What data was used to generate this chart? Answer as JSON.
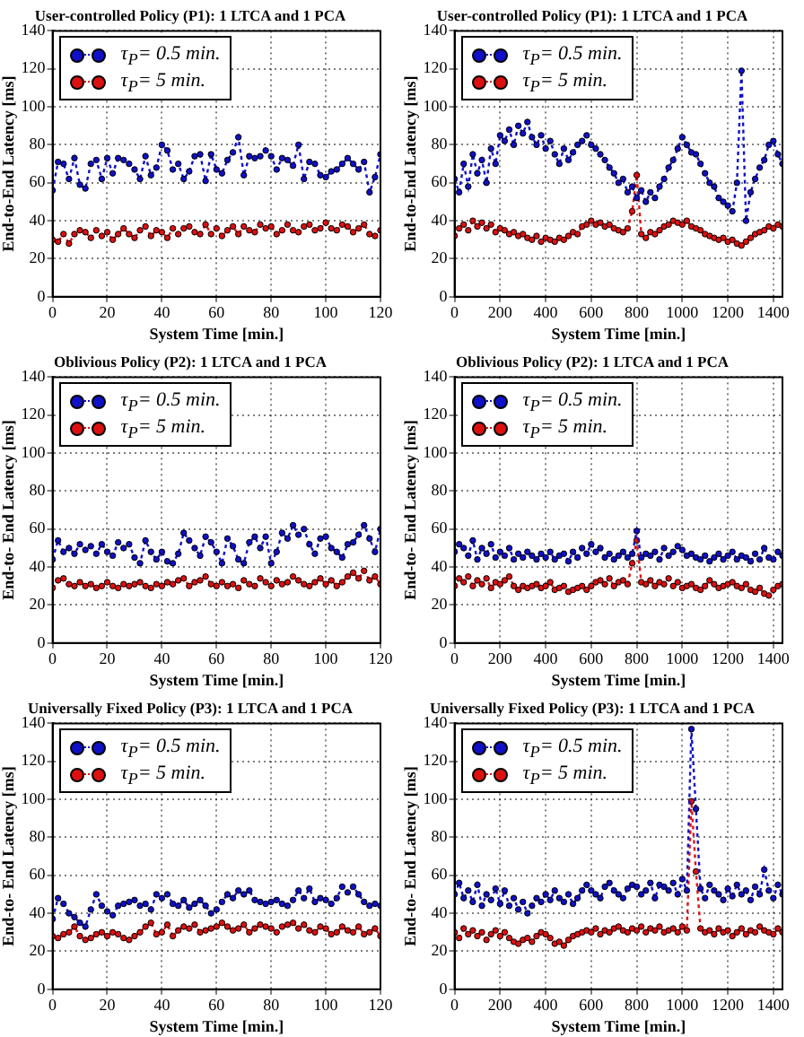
{
  "chart_data": [
    {
      "type": "line",
      "title": "User-controlled Policy (P1): 1 LTCA and 1 PCA",
      "xlabel": "System Time [min.]",
      "ylabel": "End-to-End Latency [ms]",
      "xlim": [
        0,
        120
      ],
      "xticks": [
        0,
        20,
        40,
        60,
        80,
        100,
        120
      ],
      "ylim": [
        0,
        140
      ],
      "yticks": [
        0,
        20,
        40,
        60,
        80,
        100,
        120,
        140
      ],
      "grid": true,
      "legend": "top left",
      "marker": "circle",
      "line_style": "dotted",
      "x": [
        0,
        2,
        4,
        6,
        8,
        10,
        12,
        14,
        16,
        18,
        20,
        22,
        24,
        26,
        28,
        30,
        32,
        34,
        36,
        38,
        40,
        42,
        44,
        46,
        48,
        50,
        52,
        54,
        56,
        58,
        60,
        62,
        64,
        66,
        68,
        70,
        72,
        74,
        76,
        78,
        80,
        82,
        84,
        86,
        88,
        90,
        92,
        94,
        96,
        98,
        100,
        102,
        104,
        106,
        108,
        110,
        112,
        114,
        116,
        118,
        120
      ],
      "series": [
        {
          "name": "τ$_{P}$= 0.5 min.",
          "color": "#1010c8",
          "values": [
            56,
            71,
            70,
            62,
            73,
            59,
            57,
            70,
            72,
            62,
            73,
            65,
            73,
            72,
            70,
            67,
            62,
            74,
            64,
            68,
            80,
            77,
            67,
            70,
            62,
            66,
            74,
            75,
            61,
            75,
            67,
            65,
            72,
            76,
            84,
            64,
            74,
            73,
            74,
            77,
            74,
            67,
            73,
            72,
            69,
            80,
            62,
            71,
            70,
            64,
            63,
            66,
            67,
            70,
            73,
            70,
            67,
            71,
            55,
            63,
            75
          ]
        },
        {
          "name": "τ$_{P}$= 5 min.",
          "color": "#dd1010",
          "values": [
            30,
            29,
            33,
            28,
            33,
            35,
            34,
            31,
            35,
            32,
            34,
            30,
            33,
            36,
            33,
            31,
            35,
            37,
            32,
            35,
            34,
            31,
            36,
            33,
            36,
            37,
            34,
            33,
            38,
            33,
            36,
            32,
            35,
            37,
            33,
            37,
            35,
            34,
            38,
            36,
            37,
            33,
            35,
            38,
            35,
            34,
            37,
            38,
            35,
            36,
            39,
            36,
            35,
            38,
            37,
            34,
            36,
            38,
            33,
            32,
            35
          ]
        }
      ]
    },
    {
      "type": "line",
      "title": "User-controlled Policy (P1): 1 LTCA and 1 PCA",
      "xlabel": "System Time [min.]",
      "ylabel": "End-to-End Latency [ms]",
      "xlim": [
        0,
        1440
      ],
      "xticks": [
        0,
        200,
        400,
        600,
        800,
        1000,
        1200,
        1400
      ],
      "ylim": [
        0,
        140
      ],
      "yticks": [
        0,
        20,
        40,
        60,
        80,
        100,
        120,
        140
      ],
      "grid": true,
      "legend": "top left",
      "marker": "circle",
      "line_style": "dotted",
      "x": [
        0,
        20,
        40,
        60,
        80,
        100,
        120,
        140,
        160,
        180,
        200,
        220,
        240,
        260,
        280,
        300,
        320,
        340,
        360,
        380,
        400,
        420,
        440,
        460,
        480,
        500,
        520,
        540,
        560,
        580,
        600,
        620,
        640,
        660,
        680,
        700,
        720,
        740,
        760,
        780,
        800,
        820,
        840,
        860,
        880,
        900,
        920,
        940,
        960,
        980,
        1000,
        1020,
        1040,
        1060,
        1080,
        1100,
        1120,
        1140,
        1160,
        1180,
        1200,
        1220,
        1240,
        1260,
        1280,
        1300,
        1320,
        1340,
        1360,
        1380,
        1400,
        1420,
        1440
      ],
      "series": [
        {
          "name": "τ$_{P}$= 0.5 min.",
          "color": "#1010c8",
          "values": [
            62,
            55,
            70,
            58,
            75,
            65,
            72,
            60,
            78,
            70,
            85,
            82,
            88,
            80,
            90,
            86,
            92,
            84,
            80,
            85,
            78,
            82,
            75,
            70,
            78,
            72,
            76,
            80,
            82,
            85,
            80,
            78,
            75,
            72,
            68,
            65,
            60,
            62,
            55,
            58,
            52,
            56,
            50,
            55,
            52,
            58,
            62,
            68,
            72,
            78,
            84,
            80,
            76,
            75,
            70,
            65,
            60,
            58,
            52,
            50,
            48,
            45,
            60,
            119,
            40,
            55,
            62,
            68,
            72,
            80,
            82,
            75,
            70
          ]
        },
        {
          "name": "τ$_{P}$= 5 min.",
          "color": "#dd1010",
          "values": [
            32,
            36,
            38,
            35,
            40,
            37,
            39,
            36,
            38,
            34,
            36,
            35,
            33,
            34,
            32,
            33,
            31,
            30,
            32,
            29,
            31,
            30,
            29,
            31,
            30,
            32,
            34,
            33,
            37,
            38,
            40,
            38,
            39,
            37,
            38,
            36,
            35,
            34,
            36,
            45,
            64,
            33,
            31,
            34,
            33,
            35,
            37,
            38,
            40,
            39,
            38,
            40,
            37,
            36,
            35,
            33,
            32,
            31,
            30,
            31,
            29,
            30,
            28,
            27,
            29,
            31,
            33,
            34,
            35,
            37,
            36,
            38,
            37
          ]
        }
      ]
    },
    {
      "type": "line",
      "title": "Oblivious Policy (P2): 1 LTCA and 1 PCA",
      "xlabel": "System Time [min.]",
      "ylabel": "End-to- End Latency [ms]",
      "xlim": [
        0,
        120
      ],
      "xticks": [
        0,
        20,
        40,
        60,
        80,
        100,
        120
      ],
      "ylim": [
        0,
        140
      ],
      "yticks": [
        0,
        20,
        40,
        60,
        80,
        100,
        120,
        140
      ],
      "grid": true,
      "legend": "top left",
      "marker": "circle",
      "line_style": "dotted",
      "x": [
        0,
        2,
        4,
        6,
        8,
        10,
        12,
        14,
        16,
        18,
        20,
        22,
        24,
        26,
        28,
        30,
        32,
        34,
        36,
        38,
        40,
        42,
        44,
        46,
        48,
        50,
        52,
        54,
        56,
        58,
        60,
        62,
        64,
        66,
        68,
        70,
        72,
        74,
        76,
        78,
        80,
        82,
        84,
        86,
        88,
        90,
        92,
        94,
        96,
        98,
        100,
        102,
        104,
        106,
        108,
        110,
        112,
        114,
        116,
        118,
        120
      ],
      "series": [
        {
          "name": "τ$_{P}$= 0.5 min.",
          "color": "#1010c8",
          "values": [
            44,
            54,
            48,
            50,
            47,
            52,
            49,
            51,
            47,
            52,
            48,
            46,
            53,
            50,
            52,
            45,
            42,
            54,
            48,
            44,
            48,
            43,
            42,
            47,
            58,
            54,
            50,
            46,
            56,
            53,
            48,
            42,
            55,
            51,
            44,
            42,
            53,
            56,
            50,
            56,
            42,
            48,
            58,
            55,
            62,
            57,
            60,
            52,
            47,
            55,
            56,
            50,
            48,
            45,
            52,
            53,
            57,
            62,
            55,
            48,
            60
          ]
        },
        {
          "name": "τ$_{P}$= 5 min.",
          "color": "#dd1010",
          "values": [
            29,
            33,
            34,
            31,
            30,
            32,
            30,
            31,
            29,
            30,
            32,
            30,
            29,
            31,
            30,
            31,
            32,
            30,
            29,
            31,
            30,
            32,
            31,
            33,
            34,
            30,
            32,
            33,
            35,
            31,
            30,
            32,
            30,
            31,
            29,
            33,
            31,
            30,
            34,
            32,
            30,
            33,
            31,
            32,
            35,
            33,
            31,
            30,
            32,
            34,
            31,
            33,
            30,
            32,
            35,
            37,
            34,
            38,
            33,
            35,
            31
          ]
        }
      ]
    },
    {
      "type": "line",
      "title": "Oblivious Policy (P2): 1 LTCA and 1 PCA",
      "xlabel": "System Time [min.]",
      "ylabel": "End-to- End Latency [ms]",
      "xlim": [
        0,
        1440
      ],
      "xticks": [
        0,
        200,
        400,
        600,
        800,
        1000,
        1200,
        1400
      ],
      "ylim": [
        0,
        140
      ],
      "yticks": [
        0,
        20,
        40,
        60,
        80,
        100,
        120,
        140
      ],
      "grid": true,
      "legend": "top left",
      "marker": "circle",
      "line_style": "dotted",
      "x": [
        0,
        20,
        40,
        60,
        80,
        100,
        120,
        140,
        160,
        180,
        200,
        220,
        240,
        260,
        280,
        300,
        320,
        340,
        360,
        380,
        400,
        420,
        440,
        460,
        480,
        500,
        520,
        540,
        560,
        580,
        600,
        620,
        640,
        660,
        680,
        700,
        720,
        740,
        760,
        780,
        800,
        820,
        840,
        860,
        880,
        900,
        920,
        940,
        960,
        980,
        1000,
        1020,
        1040,
        1060,
        1080,
        1100,
        1120,
        1140,
        1160,
        1180,
        1200,
        1220,
        1240,
        1260,
        1280,
        1300,
        1320,
        1340,
        1360,
        1380,
        1400,
        1420,
        1440
      ],
      "series": [
        {
          "name": "τ$_{P}$= 0.5 min.",
          "color": "#1010c8",
          "values": [
            48,
            52,
            50,
            46,
            54,
            44,
            50,
            47,
            52,
            45,
            48,
            46,
            50,
            44,
            47,
            45,
            48,
            46,
            44,
            47,
            45,
            48,
            44,
            46,
            47,
            43,
            48,
            45,
            50,
            47,
            52,
            48,
            50,
            45,
            47,
            44,
            46,
            48,
            45,
            47,
            59,
            45,
            47,
            46,
            48,
            44,
            50,
            46,
            48,
            51,
            49,
            46,
            47,
            45,
            44,
            46,
            43,
            45,
            47,
            44,
            46,
            48,
            44,
            46,
            45,
            43,
            47,
            44,
            50,
            45,
            44,
            48,
            46
          ]
        },
        {
          "name": "τ$_{P}$= 5 min.",
          "color": "#dd1010",
          "values": [
            30,
            34,
            32,
            35,
            30,
            33,
            31,
            34,
            29,
            32,
            31,
            33,
            35,
            30,
            28,
            30,
            29,
            30,
            31,
            29,
            30,
            32,
            28,
            29,
            30,
            27,
            28,
            29,
            30,
            28,
            30,
            32,
            33,
            31,
            34,
            30,
            32,
            33,
            31,
            42,
            54,
            32,
            31,
            33,
            30,
            32,
            31,
            34,
            30,
            32,
            29,
            30,
            31,
            29,
            28,
            30,
            33,
            31,
            29,
            30,
            31,
            32,
            30,
            29,
            31,
            28,
            27,
            29,
            26,
            25,
            28,
            30,
            31
          ]
        }
      ]
    },
    {
      "type": "line",
      "title": "Universally Fixed Policy (P3): 1 LTCA and 1 PCA",
      "xlabel": "System Time [min.]",
      "ylabel": "End-to- End Latency [ms]",
      "xlim": [
        0,
        120
      ],
      "xticks": [
        0,
        20,
        40,
        60,
        80,
        100,
        120
      ],
      "ylim": [
        0,
        140
      ],
      "yticks": [
        0,
        20,
        40,
        60,
        80,
        100,
        120,
        140
      ],
      "grid": true,
      "legend": "top left",
      "marker": "circle",
      "line_style": "dotted",
      "x": [
        0,
        2,
        4,
        6,
        8,
        10,
        12,
        14,
        16,
        18,
        20,
        22,
        24,
        26,
        28,
        30,
        32,
        34,
        36,
        38,
        40,
        42,
        44,
        46,
        48,
        50,
        52,
        54,
        56,
        58,
        60,
        62,
        64,
        66,
        68,
        70,
        72,
        74,
        76,
        78,
        80,
        82,
        84,
        86,
        88,
        90,
        92,
        94,
        96,
        98,
        100,
        102,
        104,
        106,
        108,
        110,
        112,
        114,
        116,
        118,
        120
      ],
      "series": [
        {
          "name": "τ$_{P}$= 0.5 min.",
          "color": "#1010c8",
          "values": [
            37,
            48,
            45,
            40,
            38,
            35,
            33,
            42,
            50,
            44,
            41,
            39,
            44,
            45,
            46,
            47,
            44,
            45,
            42,
            50,
            48,
            50,
            45,
            44,
            47,
            43,
            45,
            47,
            44,
            40,
            42,
            46,
            50,
            48,
            52,
            50,
            52,
            47,
            46,
            45,
            46,
            47,
            45,
            44,
            47,
            52,
            48,
            53,
            46,
            48,
            47,
            45,
            48,
            54,
            51,
            54,
            50,
            46,
            44,
            45,
            44
          ]
        },
        {
          "name": "τ$_{P}$= 5 min.",
          "color": "#dd1010",
          "values": [
            28,
            27,
            29,
            30,
            33,
            28,
            26,
            27,
            29,
            30,
            28,
            30,
            29,
            27,
            26,
            28,
            30,
            33,
            35,
            29,
            30,
            34,
            28,
            31,
            33,
            32,
            34,
            30,
            31,
            32,
            33,
            35,
            33,
            31,
            32,
            34,
            30,
            32,
            34,
            33,
            32,
            30,
            33,
            34,
            35,
            32,
            34,
            31,
            30,
            33,
            32,
            29,
            30,
            33,
            31,
            30,
            33,
            29,
            30,
            32,
            28
          ]
        }
      ]
    },
    {
      "type": "line",
      "title": "Universally Fixed Policy (P3): 1 LTCA and 1 PCA",
      "xlabel": "System Time [min.]",
      "ylabel": "End-to- End Latency [ms]",
      "xlim": [
        0,
        1440
      ],
      "xticks": [
        0,
        200,
        400,
        600,
        800,
        1000,
        1200,
        1400
      ],
      "ylim": [
        0,
        140
      ],
      "yticks": [
        0,
        20,
        40,
        60,
        80,
        100,
        120,
        140
      ],
      "grid": true,
      "legend": "top left",
      "marker": "circle",
      "line_style": "dotted",
      "x": [
        0,
        20,
        40,
        60,
        80,
        100,
        120,
        140,
        160,
        180,
        200,
        220,
        240,
        260,
        280,
        300,
        320,
        340,
        360,
        380,
        400,
        420,
        440,
        460,
        480,
        500,
        520,
        540,
        560,
        580,
        600,
        620,
        640,
        660,
        680,
        700,
        720,
        740,
        760,
        780,
        800,
        820,
        840,
        860,
        880,
        900,
        920,
        940,
        960,
        980,
        1000,
        1020,
        1040,
        1060,
        1080,
        1100,
        1120,
        1140,
        1160,
        1180,
        1200,
        1220,
        1240,
        1260,
        1280,
        1300,
        1320,
        1340,
        1360,
        1380,
        1400,
        1420,
        1440
      ],
      "series": [
        {
          "name": "τ$_{P}$= 0.5 min.",
          "color": "#1010c8",
          "values": [
            50,
            56,
            48,
            52,
            46,
            55,
            44,
            50,
            47,
            53,
            45,
            52,
            44,
            48,
            42,
            46,
            40,
            44,
            48,
            46,
            50,
            47,
            52,
            48,
            46,
            50,
            45,
            48,
            52,
            55,
            52,
            50,
            48,
            54,
            56,
            52,
            50,
            48,
            53,
            55,
            54,
            50,
            52,
            56,
            48,
            55,
            54,
            52,
            56,
            50,
            58,
            52,
            137,
            95,
            53,
            48,
            55,
            52,
            50,
            47,
            53,
            49,
            55,
            50,
            52,
            47,
            54,
            50,
            63,
            52,
            48,
            55,
            50
          ]
        },
        {
          "name": "τ$_{P}$= 5 min.",
          "color": "#dd1010",
          "values": [
            30,
            27,
            32,
            29,
            31,
            28,
            30,
            26,
            29,
            31,
            28,
            30,
            27,
            25,
            24,
            26,
            27,
            25,
            28,
            30,
            29,
            27,
            24,
            25,
            23,
            26,
            28,
            29,
            30,
            31,
            30,
            32,
            29,
            31,
            30,
            32,
            33,
            31,
            30,
            32,
            31,
            33,
            30,
            32,
            31,
            33,
            30,
            31,
            32,
            30,
            33,
            31,
            99,
            62,
            32,
            30,
            31,
            29,
            32,
            30,
            31,
            28,
            30,
            32,
            29,
            31,
            30,
            33,
            31,
            30,
            29,
            32,
            30
          ]
        }
      ]
    }
  ]
}
